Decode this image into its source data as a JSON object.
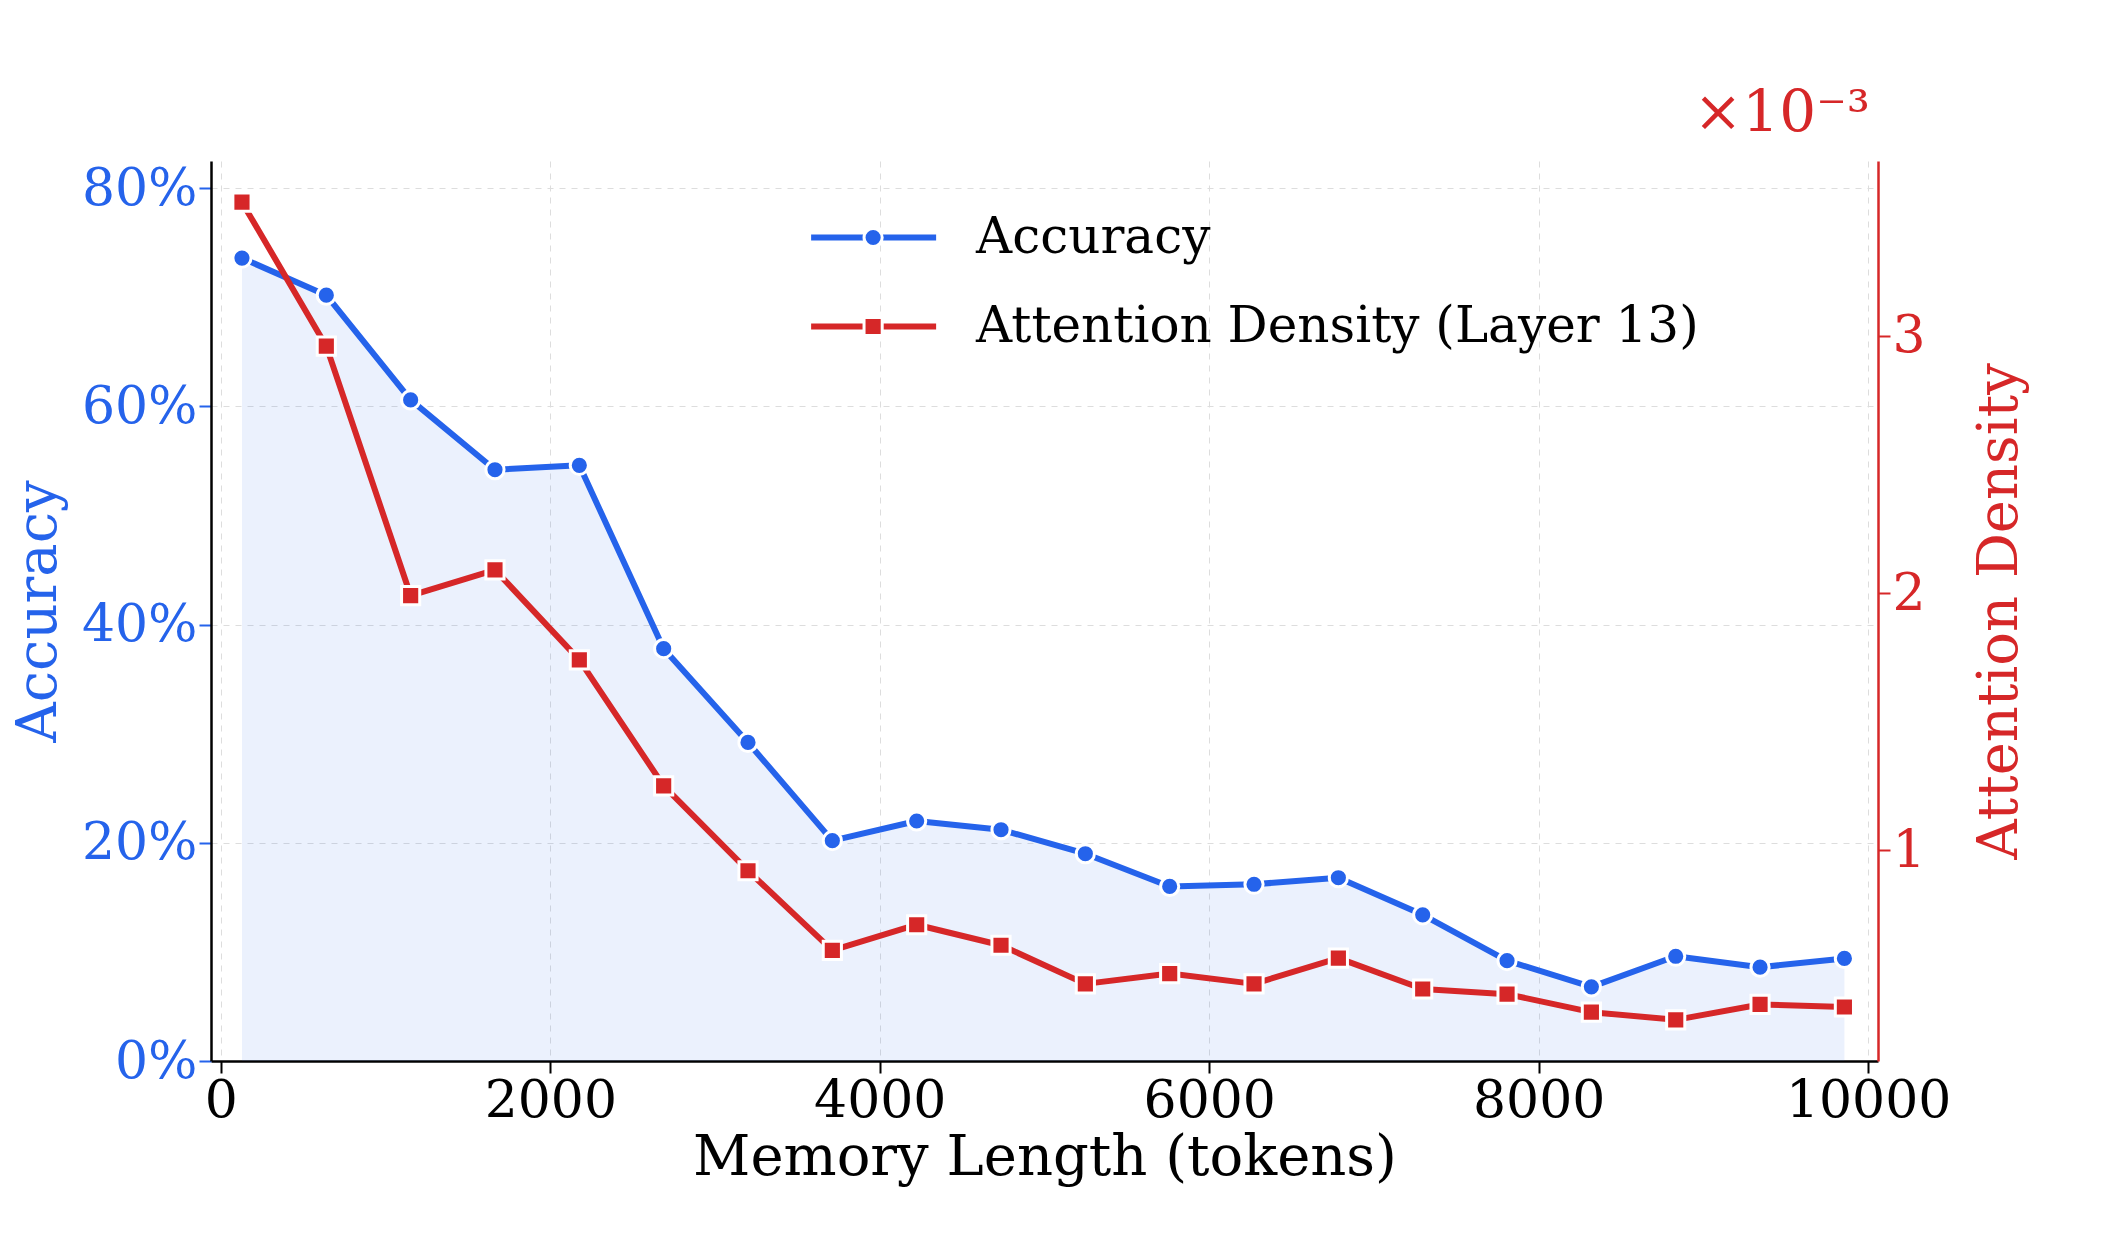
{
  "chart_data": {
    "type": "line",
    "xlabel": "Memory Length (tokens)",
    "ylabel": "Accuracy",
    "y2label": "Attention Density",
    "x": [
      128,
      640,
      1152,
      1664,
      2176,
      2688,
      3200,
      3712,
      4224,
      4736,
      5248,
      5760,
      6272,
      6784,
      7296,
      7808,
      8320,
      8832,
      9344,
      9856
    ],
    "series": [
      {
        "name": "Accuracy",
        "type": "area",
        "color": "#2563eb",
        "marker": "circle",
        "values": [
          73.6,
          70.2,
          60.6,
          54.2,
          54.6,
          37.8,
          29.2,
          20.2,
          22.0,
          21.2,
          19.0,
          16.0,
          16.2,
          16.8,
          13.4,
          9.2,
          6.8,
          9.6,
          8.6,
          9.4
        ]
      },
      {
        "name": "Attention Density (Layer 13)",
        "axis": "y2",
        "color": "#d62728",
        "marker": "square",
        "values": [
          3.52,
          2.96,
          1.99,
          2.09,
          1.74,
          1.25,
          0.92,
          0.61,
          0.71,
          0.63,
          0.48,
          0.52,
          0.48,
          0.58,
          0.46,
          0.44,
          0.37,
          0.34,
          0.4,
          0.39
        ]
      }
    ],
    "xlim": [
      -60,
      10060
    ],
    "xticks": [
      0,
      2000,
      4000,
      6000,
      8000,
      10000
    ],
    "ylim": [
      0,
      82.5
    ],
    "yticks": [
      {
        "value": 0,
        "label": "0%"
      },
      {
        "value": 20,
        "label": "20%"
      },
      {
        "value": 40,
        "label": "40%"
      },
      {
        "value": 60,
        "label": "60%"
      },
      {
        "value": 80,
        "label": "80%"
      }
    ],
    "y2lim": [
      0.18,
      3.68
    ],
    "y2ticks": [
      1,
      2,
      3
    ],
    "annotations": [
      "×10⁻³"
    ],
    "grid": true,
    "legend": "top right",
    "line_style": "solid"
  }
}
